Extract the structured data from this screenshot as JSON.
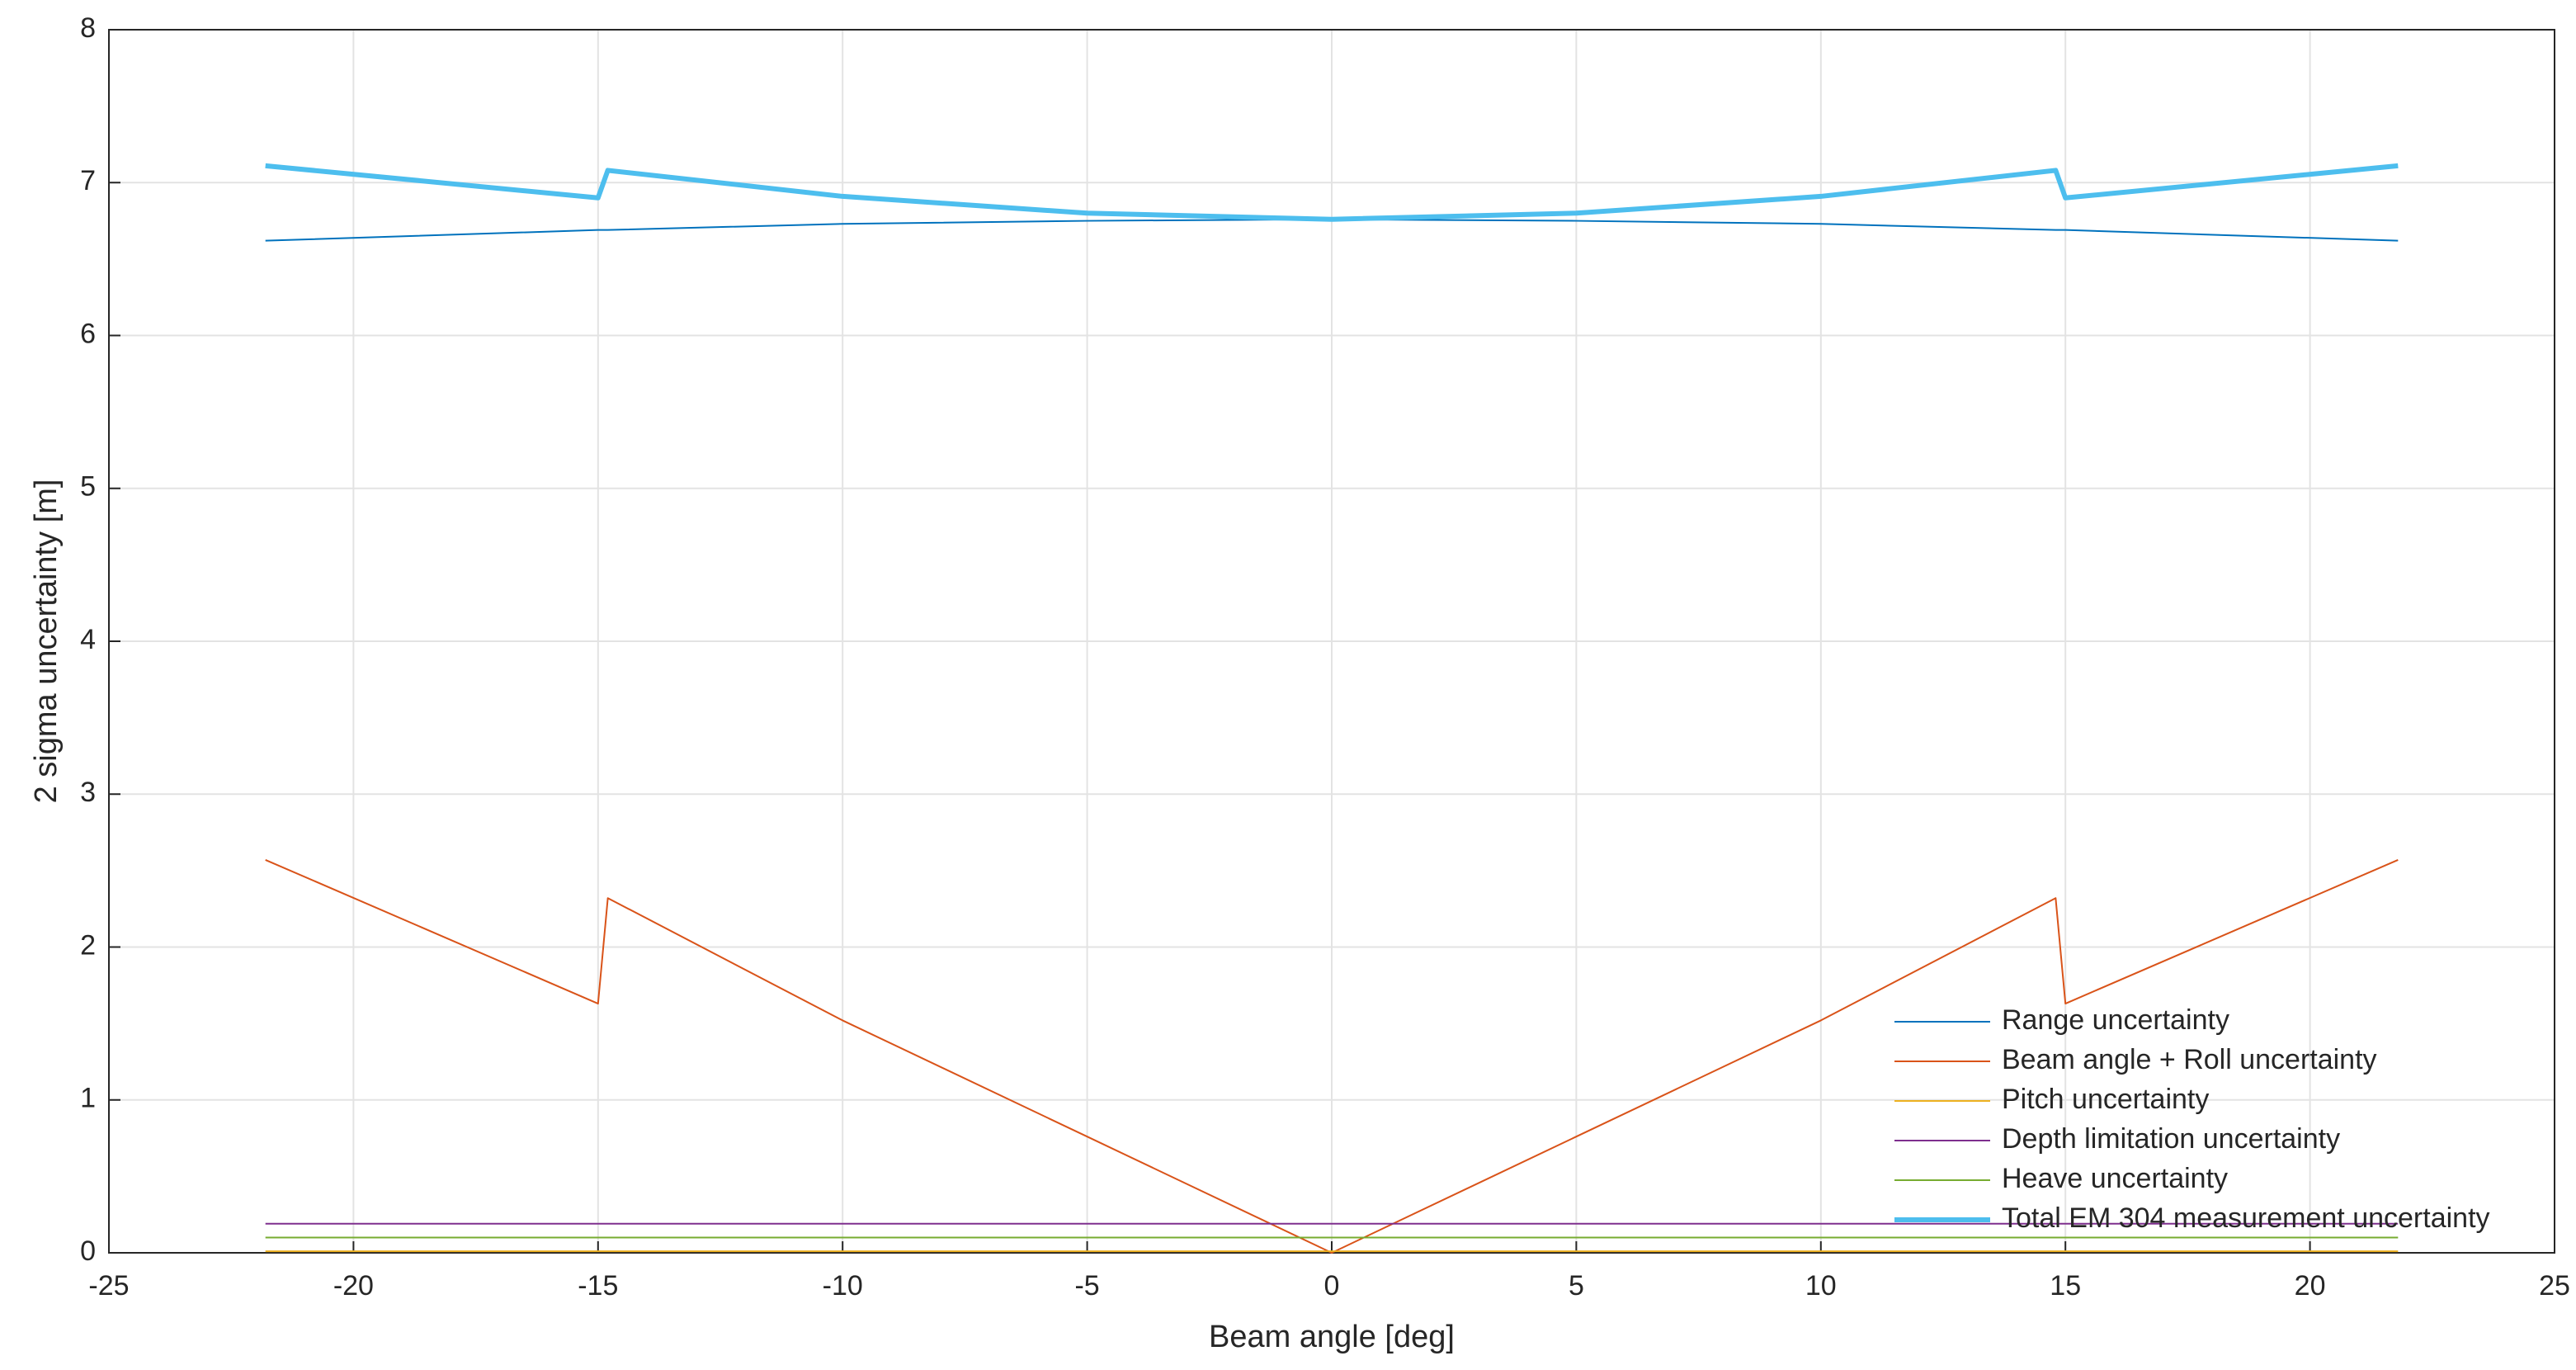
{
  "chart_data": {
    "type": "line",
    "xlabel": "Beam angle [deg]",
    "ylabel": "2 sigma uncertainty [m]",
    "x": [
      -21.8,
      -15,
      -14.8,
      -10,
      -5,
      0,
      5,
      10,
      14.8,
      15,
      21.8
    ],
    "series": [
      {
        "name": "Range uncertainty",
        "color": "#0072bd",
        "width": 2,
        "values": [
          6.62,
          6.69,
          6.69,
          6.73,
          6.75,
          6.76,
          6.75,
          6.73,
          6.69,
          6.69,
          6.62
        ]
      },
      {
        "name": "Beam angle + Roll uncertainty",
        "color": "#d95319",
        "width": 2,
        "values": [
          2.57,
          1.63,
          2.32,
          1.52,
          0.76,
          0.0,
          0.76,
          1.52,
          2.32,
          1.63,
          2.57
        ]
      },
      {
        "name": "Pitch uncertainty",
        "color": "#edb120",
        "width": 2,
        "values": [
          0.01,
          0.01,
          0.01,
          0.01,
          0.01,
          0.01,
          0.01,
          0.01,
          0.01,
          0.01,
          0.01
        ]
      },
      {
        "name": "Depth limitation uncertainty",
        "color": "#7e2f8e",
        "width": 2,
        "values": [
          0.19,
          0.19,
          0.19,
          0.19,
          0.19,
          0.19,
          0.19,
          0.19,
          0.19,
          0.19,
          0.19
        ]
      },
      {
        "name": "Heave uncertainty",
        "color": "#77ac30",
        "width": 2,
        "values": [
          0.1,
          0.1,
          0.1,
          0.1,
          0.1,
          0.1,
          0.1,
          0.1,
          0.1,
          0.1,
          0.1
        ]
      },
      {
        "name": "Total EM 304 measurement uncertainty",
        "color": "#4dbeee",
        "width": 6,
        "values": [
          7.11,
          6.9,
          7.08,
          6.91,
          6.8,
          6.76,
          6.8,
          6.91,
          7.08,
          6.9,
          7.11
        ]
      }
    ],
    "xlim": [
      -25,
      25
    ],
    "xticks": [
      -25,
      -20,
      -15,
      -10,
      -5,
      0,
      5,
      10,
      15,
      20,
      25
    ],
    "ylim": [
      0,
      8
    ],
    "yticks": [
      0,
      1,
      2,
      3,
      4,
      5,
      6,
      7,
      8
    ],
    "grid": true,
    "legend": "lower right"
  }
}
